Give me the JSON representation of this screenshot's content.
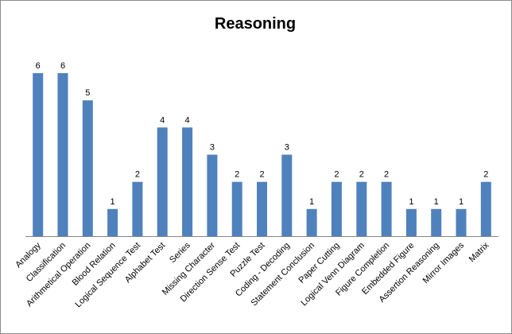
{
  "chart_data": {
    "type": "bar",
    "title": "Reasoning",
    "xlabel": "",
    "ylabel": "",
    "ylim": [
      0,
      6
    ],
    "grid": false,
    "legend": "none",
    "bar_color": "#4F81BD",
    "categories": [
      "Analogy",
      "Classification",
      "Arithmetical Operation",
      "Blood Relation",
      "Logical Sequence Test",
      "Alphabet Test",
      "Series",
      "Missing Character",
      "Direction Sense Test",
      "Puzzle Test",
      "Coding - Decoding",
      "Statement Conclusion",
      "Paper Cutting",
      "Logical Venn Diagram",
      "Figure Completion",
      "Embedded Figure",
      "Assertion Reasoning",
      "Mirror Images",
      "Matrix"
    ],
    "series": [
      {
        "values": [
          6,
          6,
          5,
          1,
          2,
          4,
          4,
          3,
          2,
          2,
          3,
          1,
          2,
          2,
          2,
          1,
          1,
          1,
          2
        ]
      }
    ]
  }
}
